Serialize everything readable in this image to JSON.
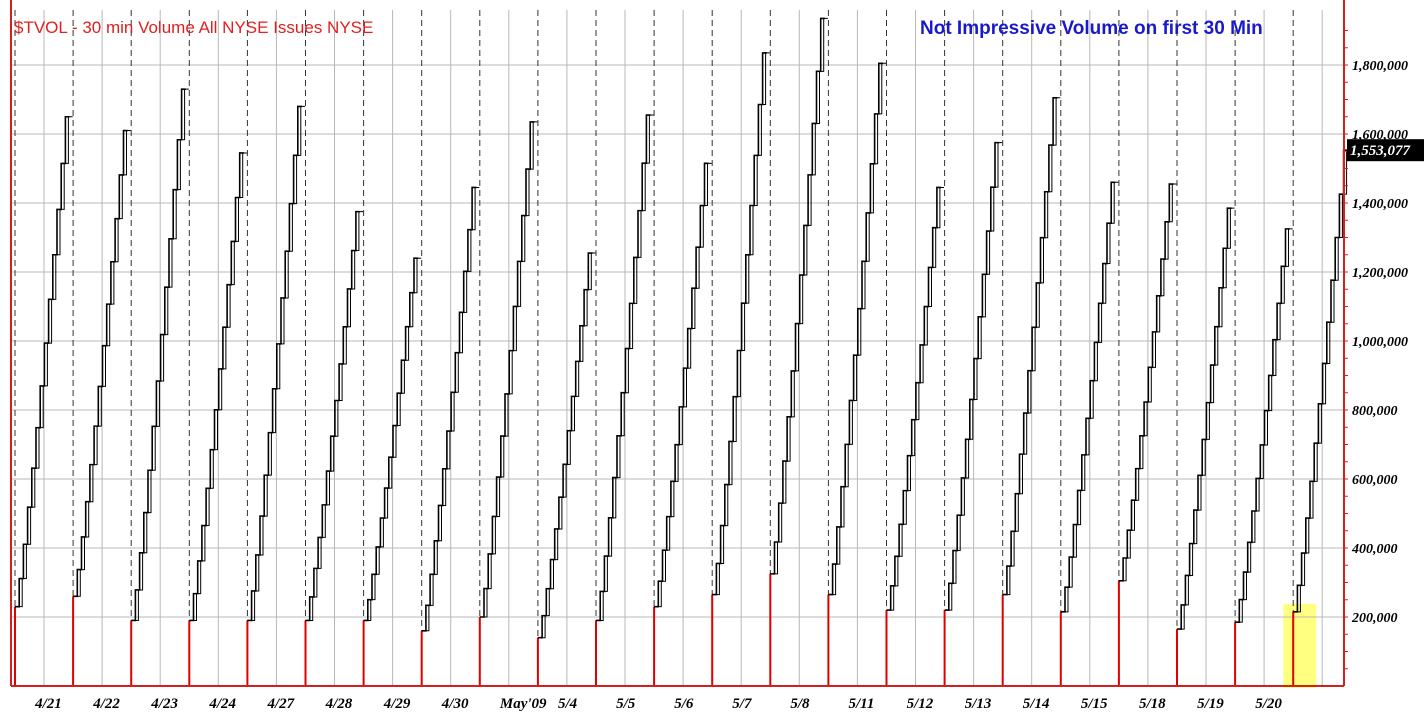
{
  "chart_data": {
    "type": "bar",
    "title": "$TVOL - 30 min  Volume All NYSE Issues  NYSE",
    "annotation": "Not Impressive Volume on first 30 Min",
    "last_value_label": "1,553,077",
    "last_value": 1553077,
    "y_ticks": [
      200000,
      400000,
      600000,
      800000,
      1000000,
      1200000,
      1400000,
      1600000,
      1800000
    ],
    "y_tick_labels": [
      "200,000",
      "400,000",
      "600,000",
      "800,000",
      "1,000,000",
      "1,200,000",
      "1,400,000",
      "1,600,000",
      "1,800,000"
    ],
    "ylim": [
      0,
      1950000
    ],
    "grid": true,
    "x_labels": [
      "4/21",
      "4/22",
      "4/23",
      "4/24",
      "4/27",
      "4/28",
      "4/29",
      "4/30",
      "May'09",
      "5/4",
      "5/5",
      "5/6",
      "5/7",
      "5/8",
      "5/11",
      "5/12",
      "5/13",
      "5/14",
      "5/15",
      "5/18",
      "5/19",
      "5/20"
    ],
    "highlighted_session": 22,
    "sessions": [
      {
        "first_30min": 230000,
        "total": 1650000
      },
      {
        "first_30min": 260000,
        "total": 1610000
      },
      {
        "first_30min": 190000,
        "total": 1730000
      },
      {
        "first_30min": 190000,
        "total": 1545000
      },
      {
        "first_30min": 190000,
        "total": 1680000
      },
      {
        "first_30min": 190000,
        "total": 1375000
      },
      {
        "first_30min": 190000,
        "total": 1240000
      },
      {
        "first_30min": 160000,
        "total": 1445000
      },
      {
        "first_30min": 200000,
        "total": 1635000
      },
      {
        "first_30min": 140000,
        "total": 1255000
      },
      {
        "first_30min": 190000,
        "total": 1655000
      },
      {
        "first_30min": 230000,
        "total": 1515000
      },
      {
        "first_30min": 265000,
        "total": 1835000
      },
      {
        "first_30min": 325000,
        "total": 1935000
      },
      {
        "first_30min": 265000,
        "total": 1805000
      },
      {
        "first_30min": 220000,
        "total": 1445000
      },
      {
        "first_30min": 220000,
        "total": 1575000
      },
      {
        "first_30min": 265000,
        "total": 1705000
      },
      {
        "first_30min": 215000,
        "total": 1460000
      },
      {
        "first_30min": 305000,
        "total": 1455000
      },
      {
        "first_30min": 165000,
        "total": 1385000
      },
      {
        "first_30min": 185000,
        "total": 1325000
      },
      {
        "first_30min": 215000,
        "total": 1553077
      }
    ],
    "colors": {
      "first_bar": "#e00000",
      "cumulative": "#000000",
      "grid": "#b8b8b8",
      "session_divider": "#333333",
      "axis_red": "#d02020",
      "title": "#e02020",
      "annotation": "#1a1acc",
      "highlight": "#ffff80",
      "price_tag_bg": "#000000",
      "price_tag_text": "#ffffff"
    }
  }
}
